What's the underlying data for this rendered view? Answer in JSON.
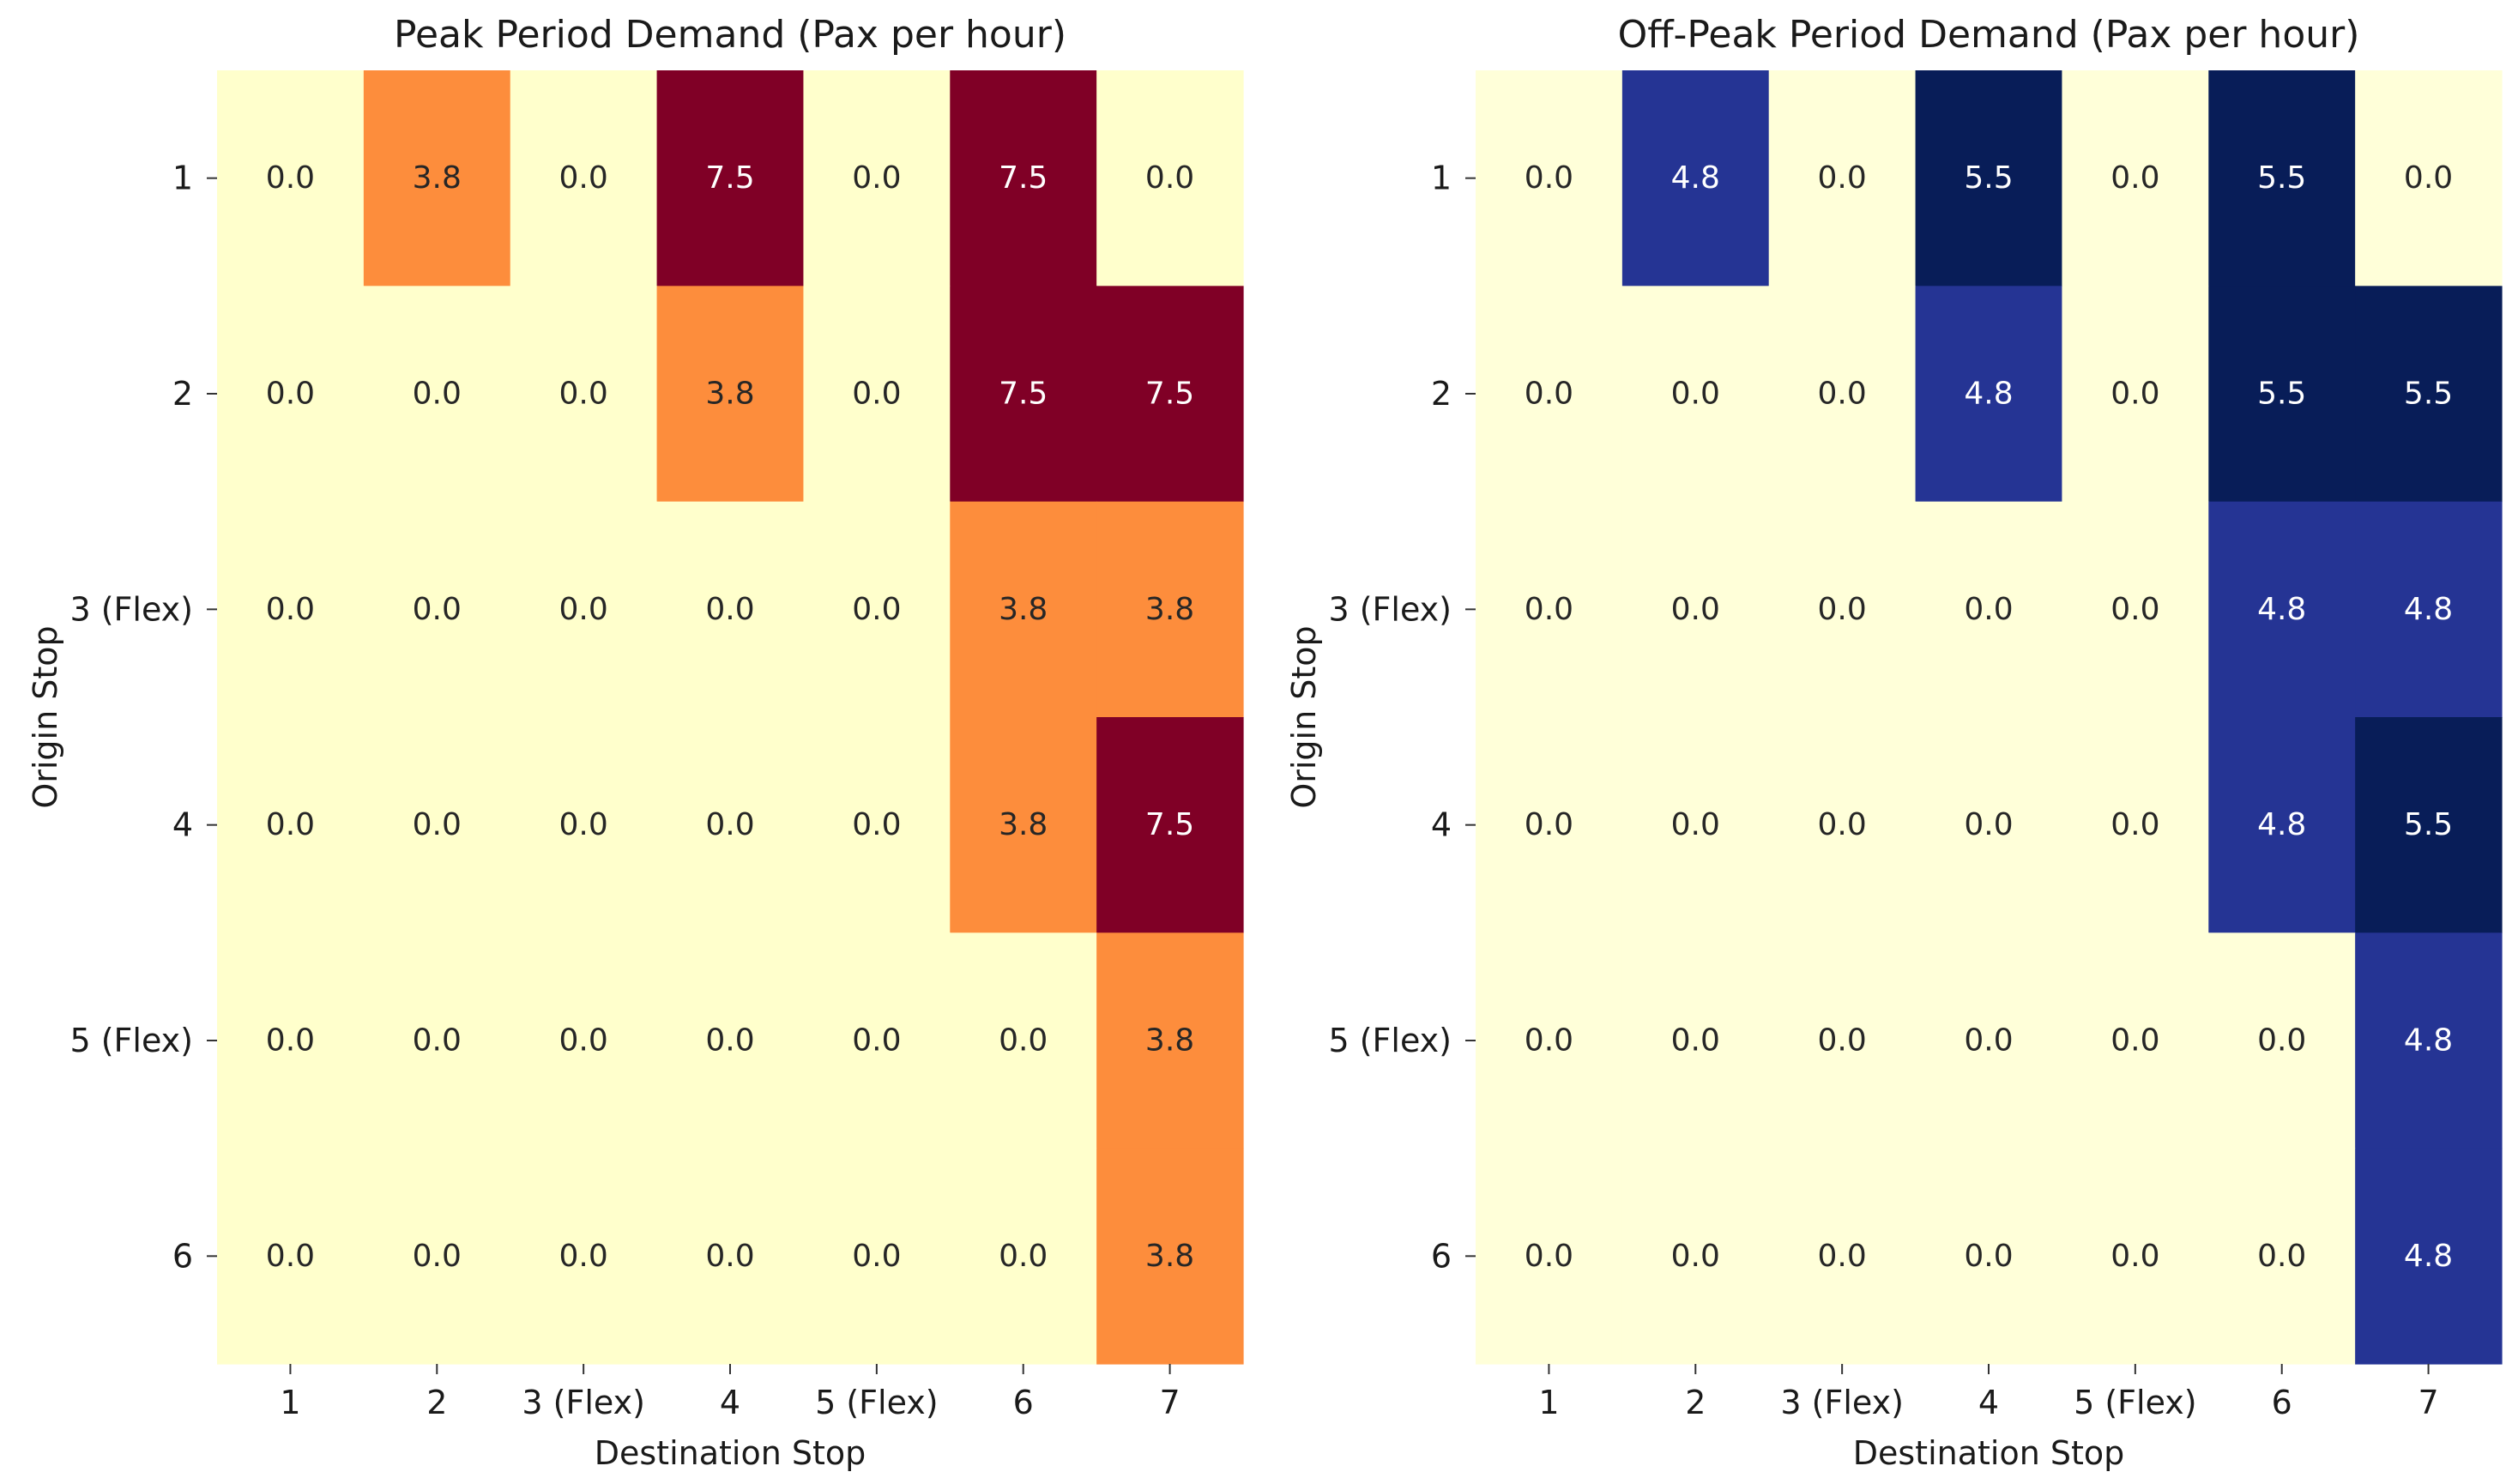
{
  "chart_data": [
    {
      "type": "heatmap",
      "title": "Peak Period Demand (Pax per hour)",
      "xlabel": "Destination Stop",
      "ylabel": "Origin Stop",
      "x_categories": [
        "1",
        "2",
        "3 (Flex)",
        "4",
        "5 (Flex)",
        "6",
        "7"
      ],
      "y_categories": [
        "1",
        "2",
        "3 (Flex)",
        "4",
        "5 (Flex)",
        "6"
      ],
      "values": [
        [
          0.0,
          3.8,
          0.0,
          7.5,
          0.0,
          7.5,
          0.0
        ],
        [
          0.0,
          0.0,
          0.0,
          3.8,
          0.0,
          7.5,
          7.5
        ],
        [
          0.0,
          0.0,
          0.0,
          0.0,
          0.0,
          3.8,
          3.8
        ],
        [
          0.0,
          0.0,
          0.0,
          0.0,
          0.0,
          3.8,
          7.5
        ],
        [
          0.0,
          0.0,
          0.0,
          0.0,
          0.0,
          0.0,
          3.8
        ],
        [
          0.0,
          0.0,
          0.0,
          0.0,
          0.0,
          0.0,
          3.8
        ]
      ],
      "value_format": "0.0",
      "colormap": "YlOrRd",
      "value_colors": {
        "0": "#ffffcc",
        "3.8": "#fd8d3c",
        "7.5": "#800026"
      },
      "label_colors": {
        "light": "#ffffff",
        "dark": "#262626"
      },
      "colorbar": false
    },
    {
      "type": "heatmap",
      "title": "Off-Peak Period Demand (Pax per hour)",
      "xlabel": "Destination Stop",
      "ylabel": "Origin Stop",
      "x_categories": [
        "1",
        "2",
        "3 (Flex)",
        "4",
        "5 (Flex)",
        "6",
        "7"
      ],
      "y_categories": [
        "1",
        "2",
        "3 (Flex)",
        "4",
        "5 (Flex)",
        "6"
      ],
      "values": [
        [
          0.0,
          4.8,
          0.0,
          5.5,
          0.0,
          5.5,
          0.0
        ],
        [
          0.0,
          0.0,
          0.0,
          4.8,
          0.0,
          5.5,
          5.5
        ],
        [
          0.0,
          0.0,
          0.0,
          0.0,
          0.0,
          4.8,
          4.8
        ],
        [
          0.0,
          0.0,
          0.0,
          0.0,
          0.0,
          4.8,
          5.5
        ],
        [
          0.0,
          0.0,
          0.0,
          0.0,
          0.0,
          0.0,
          4.8
        ],
        [
          0.0,
          0.0,
          0.0,
          0.0,
          0.0,
          0.0,
          4.8
        ]
      ],
      "value_format": "0.0",
      "colormap": "YlGnBu",
      "value_colors": {
        "0": "#ffffd9",
        "4.8": "#253494",
        "5.5": "#081d58"
      },
      "label_colors": {
        "light": "#ffffff",
        "dark": "#262626"
      },
      "colorbar": false
    }
  ]
}
